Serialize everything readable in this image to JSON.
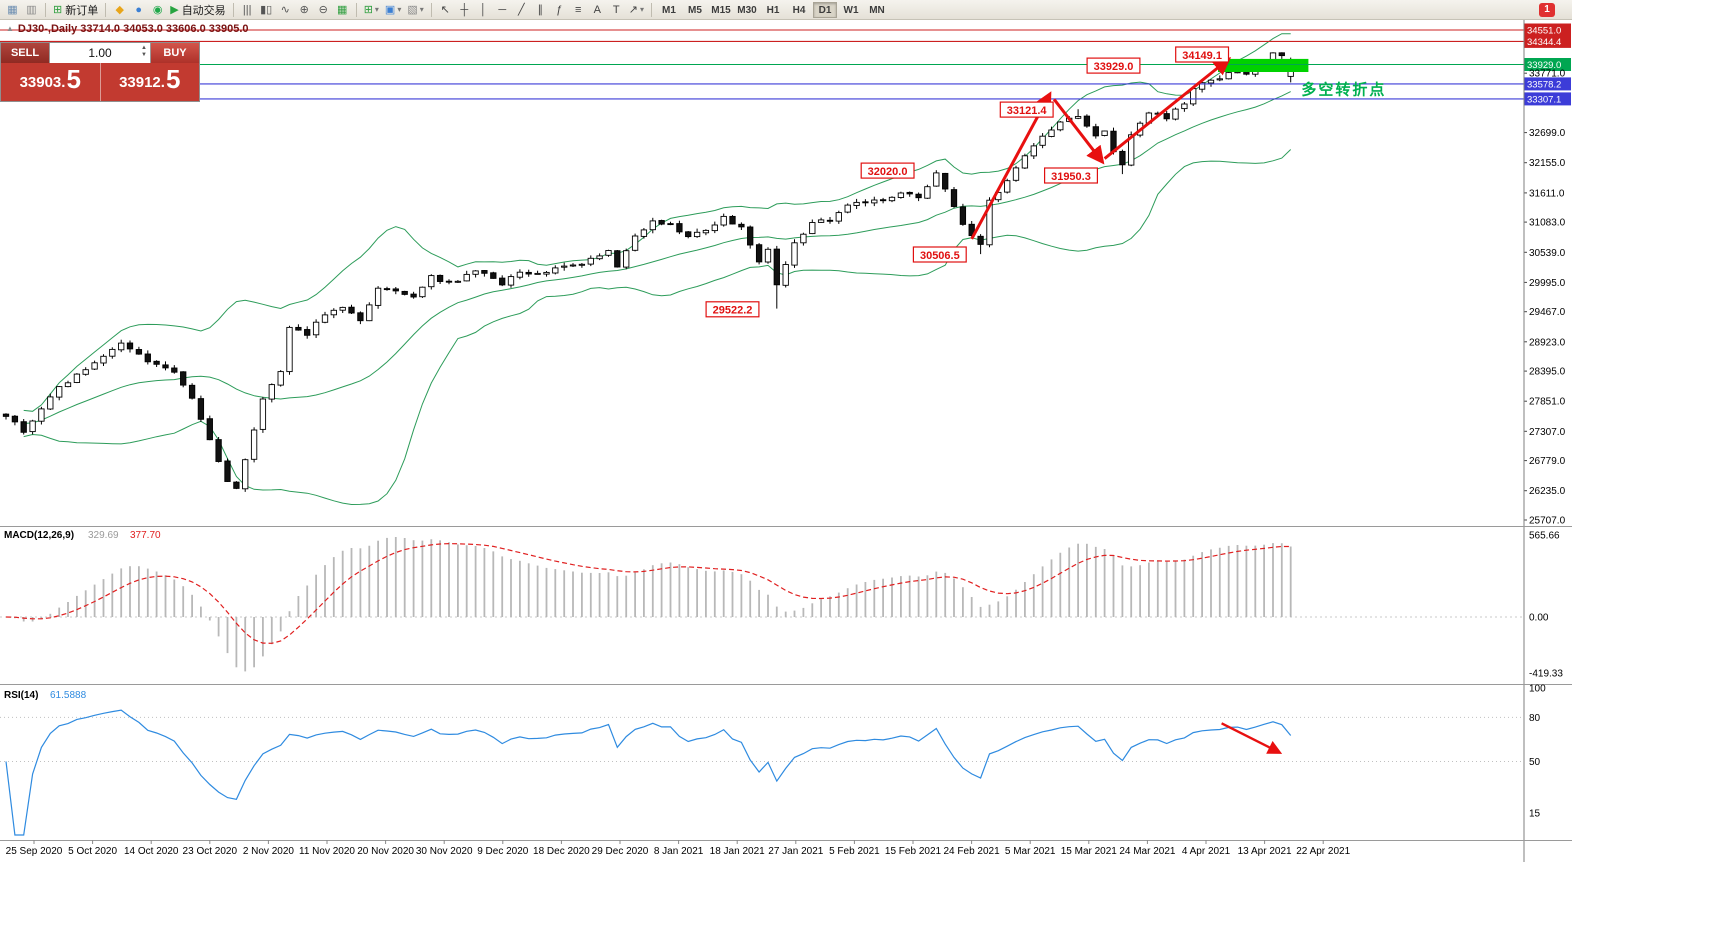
{
  "window": {
    "chart_header": "DJ30-,Daily   33714.0 34053.0 33606.0 33905.0",
    "toolbar": {
      "groups": [
        {
          "items": [
            {
              "name": "new-chart-icon",
              "glyph": "▦",
              "color": "#6a8cb0"
            },
            {
              "name": "chart-profiles-icon",
              "glyph": "▥",
              "color": "#8a8a8a"
            }
          ]
        },
        {
          "items": [
            {
              "name": "new-order-button",
              "glyph": "⊞",
              "color": "#2e9e3e",
              "label": "新订单"
            }
          ]
        },
        {
          "items": [
            {
              "name": "history-center-icon",
              "glyph": "◆",
              "color": "#e8a51a"
            },
            {
              "name": "community-icon",
              "glyph": "●",
              "color": "#3b7fd4"
            },
            {
              "name": "market-icon",
              "glyph": "◉",
              "color": "#1fa84a"
            },
            {
              "name": "autotrading-button",
              "glyph": "▶",
              "color": "#27a440",
              "label": "自动交易"
            }
          ]
        },
        {
          "items": [
            {
              "name": "bar-chart-type-icon",
              "glyph": "|||",
              "color": "#555555"
            },
            {
              "name": "candlestick-type-icon",
              "glyph": "▮▯",
              "color": "#555555"
            },
            {
              "name": "line-chart-type-icon",
              "glyph": "∿",
              "color": "#555555"
            },
            {
              "name": "zoom-in-icon",
              "glyph": "⊕",
              "color": "#555555"
            },
            {
              "name": "zoom-out-icon",
              "glyph": "⊖",
              "color": "#555555"
            },
            {
              "name": "tile-windows-icon",
              "glyph": "▦",
              "color": "#2e9e3e"
            }
          ]
        },
        {
          "items": [
            {
              "name": "indicators-menu",
              "glyph": "⊞",
              "color": "#2e9e3e",
              "dropdown": true
            },
            {
              "name": "periods-menu",
              "glyph": "▣",
              "color": "#3b7fd4",
              "dropdown": true
            },
            {
              "name": "templates-menu",
              "glyph": "▧",
              "color": "#8a8a8a",
              "dropdown": true
            }
          ]
        },
        {
          "items": [
            {
              "name": "cursor-tool",
              "glyph": "↖",
              "color": "#444444"
            },
            {
              "name": "crosshair-tool",
              "glyph": "┼",
              "color": "#444444"
            },
            {
              "name": "vertical-line-tool",
              "glyph": "│",
              "color": "#444444"
            },
            {
              "name": "horizontal-line-tool",
              "glyph": "─",
              "color": "#444444"
            },
            {
              "name": "trendline-tool",
              "glyph": "╱",
              "color": "#444444"
            },
            {
              "name": "channel-tool",
              "glyph": "∥",
              "color": "#444444"
            },
            {
              "name": "fibonacci-tool",
              "glyph": "ƒ",
              "color": "#444444"
            },
            {
              "name": "equidistant-tool",
              "glyph": "≡",
              "color": "#444444"
            },
            {
              "name": "text-tool",
              "glyph": "A",
              "color": "#444444"
            },
            {
              "name": "label-tool",
              "glyph": "T",
              "color": "#444444"
            },
            {
              "name": "arrows-tool",
              "glyph": "↗",
              "color": "#444444",
              "dropdown": true
            }
          ]
        }
      ],
      "timeframes": [
        "M1",
        "M5",
        "M15",
        "M30",
        "H1",
        "H4",
        "D1",
        "W1",
        "MN"
      ],
      "active_timeframe": "D1",
      "notification_count": "1"
    },
    "trade_panel": {
      "sell_label": "SELL",
      "buy_label": "BUY",
      "volume": "1.00",
      "sell_price": {
        "main": "33903.",
        "big": "5"
      },
      "buy_price": {
        "main": "33912.",
        "big": "5"
      }
    }
  },
  "chart_data": {
    "type": "candlestick",
    "symbol": "DJ30-",
    "timeframe": "Daily",
    "last_ohlc": {
      "open": 33714.0,
      "high": 34053.0,
      "low": 33606.0,
      "close": 33905.0
    },
    "bid": 33903.5,
    "ask": 33912.5,
    "candle_colors": {
      "bull_fill": "#ffffff",
      "bear_fill": "#111111",
      "outline": "#000000"
    },
    "price_axis": {
      "ticks": [
        33771.0,
        32699.0,
        32155.0,
        31611.0,
        31083.0,
        30539.0,
        29995.0,
        29467.0,
        28923.0,
        28395.0,
        27851.0,
        27307.0,
        26779.0,
        26235.0,
        25707.0
      ]
    },
    "levels": [
      {
        "price": 34551.0,
        "color": "#cc2020"
      },
      {
        "price": 34344.4,
        "color": "#cc2020"
      },
      {
        "price": 33929.0,
        "color": "#00a651"
      },
      {
        "price": 33578.2,
        "color": "#3c3cd8"
      },
      {
        "price": 33307.1,
        "color": "#3c3cd8"
      }
    ],
    "supply_zone": {
      "day_start": 136.8,
      "day_end": 147,
      "price_top": 34030,
      "price_bottom": 33793,
      "color": "#00d200"
    },
    "annotations": [
      {
        "label": "29522.2",
        "day": 82,
        "price": 29500
      },
      {
        "label": "32020.0",
        "day": 99.5,
        "price": 32005
      },
      {
        "label": "30506.5",
        "day": 105.4,
        "price": 30490
      },
      {
        "label": "33121.4",
        "day": 115.2,
        "price": 33105
      },
      {
        "label": "31950.3",
        "day": 120.2,
        "price": 31915
      },
      {
        "label": "33929.0",
        "day": 125,
        "price": 33900
      },
      {
        "label": "34149.1",
        "day": 135,
        "price": 34100
      }
    ],
    "arrows": [
      {
        "day1": 109,
        "price1": 30780,
        "day2": 117.7,
        "price2": 33360
      },
      {
        "day1": 118.3,
        "price1": 33300,
        "day2": 123.6,
        "price2": 32200
      },
      {
        "day1": 124,
        "price1": 32230,
        "day2": 137.8,
        "price2": 34000
      }
    ],
    "note": {
      "text": "多空转折点",
      "day": 146.2,
      "price": 33390,
      "color": "#00b050"
    },
    "time_axis": [
      "25 Sep 2020",
      "5 Oct 2020",
      "14 Oct 2020",
      "23 Oct 2020",
      "2 Nov 2020",
      "11 Nov 2020",
      "20 Nov 2020",
      "30 Nov 2020",
      "9 Dec 2020",
      "18 Dec 2020",
      "29 Dec 2020",
      "8 Jan 2021",
      "18 Jan 2021",
      "27 Jan 2021",
      "5 Feb 2021",
      "15 Feb 2021",
      "24 Feb 2021",
      "5 Mar 2021",
      "15 Mar 2021",
      "24 Mar 2021",
      "4 Apr 2021",
      "13 Apr 2021",
      "22 Apr 2021"
    ],
    "series": {
      "days": 146,
      "anchors": [
        [
          0,
          27600
        ],
        [
          2,
          27320
        ],
        [
          4,
          27700
        ],
        [
          6,
          28100
        ],
        [
          9,
          28420
        ],
        [
          13,
          28900
        ],
        [
          16,
          28550
        ],
        [
          19,
          28350
        ],
        [
          21,
          27900
        ],
        [
          23,
          27150
        ],
        [
          25,
          26420
        ],
        [
          26,
          26280
        ],
        [
          27,
          26820
        ],
        [
          29,
          27900
        ],
        [
          31,
          28350
        ],
        [
          32,
          29150
        ],
        [
          34,
          29080
        ],
        [
          36,
          29420
        ],
        [
          38,
          29580
        ],
        [
          40,
          29320
        ],
        [
          42,
          29920
        ],
        [
          44,
          29820
        ],
        [
          46,
          29720
        ],
        [
          48,
          30080
        ],
        [
          51,
          29980
        ],
        [
          53,
          30230
        ],
        [
          56,
          29960
        ],
        [
          58,
          30160
        ],
        [
          60,
          30140
        ],
        [
          63,
          30280
        ],
        [
          66,
          30400
        ],
        [
          68,
          30580
        ],
        [
          69,
          30280
        ],
        [
          71,
          30820
        ],
        [
          73,
          31080
        ],
        [
          75,
          31020
        ],
        [
          77,
          30860
        ],
        [
          79,
          30940
        ],
        [
          81,
          31160
        ],
        [
          83,
          30960
        ],
        [
          85,
          30380
        ],
        [
          86,
          30620
        ],
        [
          87,
          29980
        ],
        [
          89,
          30680
        ],
        [
          91,
          31080
        ],
        [
          93,
          31140
        ],
        [
          95,
          31380
        ],
        [
          97,
          31430
        ],
        [
          99,
          31480
        ],
        [
          101,
          31620
        ],
        [
          103,
          31520
        ],
        [
          105,
          31940
        ],
        [
          107,
          31380
        ],
        [
          108,
          31020
        ],
        [
          110,
          30680
        ],
        [
          111,
          31480
        ],
        [
          113,
          31790
        ],
        [
          115,
          32280
        ],
        [
          117,
          32620
        ],
        [
          119,
          32920
        ],
        [
          121,
          33020
        ],
        [
          123,
          32640
        ],
        [
          124,
          32730
        ],
        [
          125,
          32380
        ],
        [
          126,
          32080
        ],
        [
          127,
          32620
        ],
        [
          129,
          33080
        ],
        [
          131,
          32980
        ],
        [
          133,
          33220
        ],
        [
          134,
          33520
        ],
        [
          136,
          33620
        ],
        [
          138,
          33780
        ],
        [
          140,
          33740
        ],
        [
          142,
          34030
        ],
        [
          143,
          34120
        ],
        [
          144,
          34060
        ],
        [
          145,
          33905
        ]
      ],
      "high_caps": [
        {
          "from": 100,
          "to": 107,
          "max_high": 32020.0
        },
        {
          "from": 116,
          "to": 123,
          "max_high": 33121.4
        },
        {
          "from": 134,
          "to": 144,
          "max_high": 34149.1
        }
      ],
      "overrides": [
        {
          "day": 87,
          "low": 29522.2
        },
        {
          "day": 105,
          "high": 32020.0
        },
        {
          "day": 110,
          "low": 30506.5
        },
        {
          "day": 121,
          "high": 33121.4
        },
        {
          "day": 126,
          "low": 31950.3
        },
        {
          "day": 143,
          "high": 34149.1
        },
        {
          "day": 145,
          "open": 33714.0,
          "high": 34053.0,
          "low": 33606.0,
          "close": 33905.0
        }
      ]
    },
    "bollinger": {
      "period": 20,
      "deviation": 2,
      "color": "#2d9c5a"
    },
    "macd": {
      "label": "MACD(12,26,9)",
      "value": "329.69",
      "signal_value": "377.70",
      "axis_ticks": [
        "565.66",
        "0.00",
        "-419.33"
      ],
      "histogram_color": "#b8b8b8",
      "signal_color": "#e02020"
    },
    "rsi": {
      "label": "RSI(14)",
      "value": "61.5888",
      "axis_ticks": [
        100,
        80,
        50,
        15
      ],
      "levels": [
        80,
        50
      ],
      "color": "#2f8be0",
      "arrow": {
        "day1": 137.2,
        "value1": 76,
        "day2": 143.6,
        "value2": 56.5
      }
    }
  }
}
